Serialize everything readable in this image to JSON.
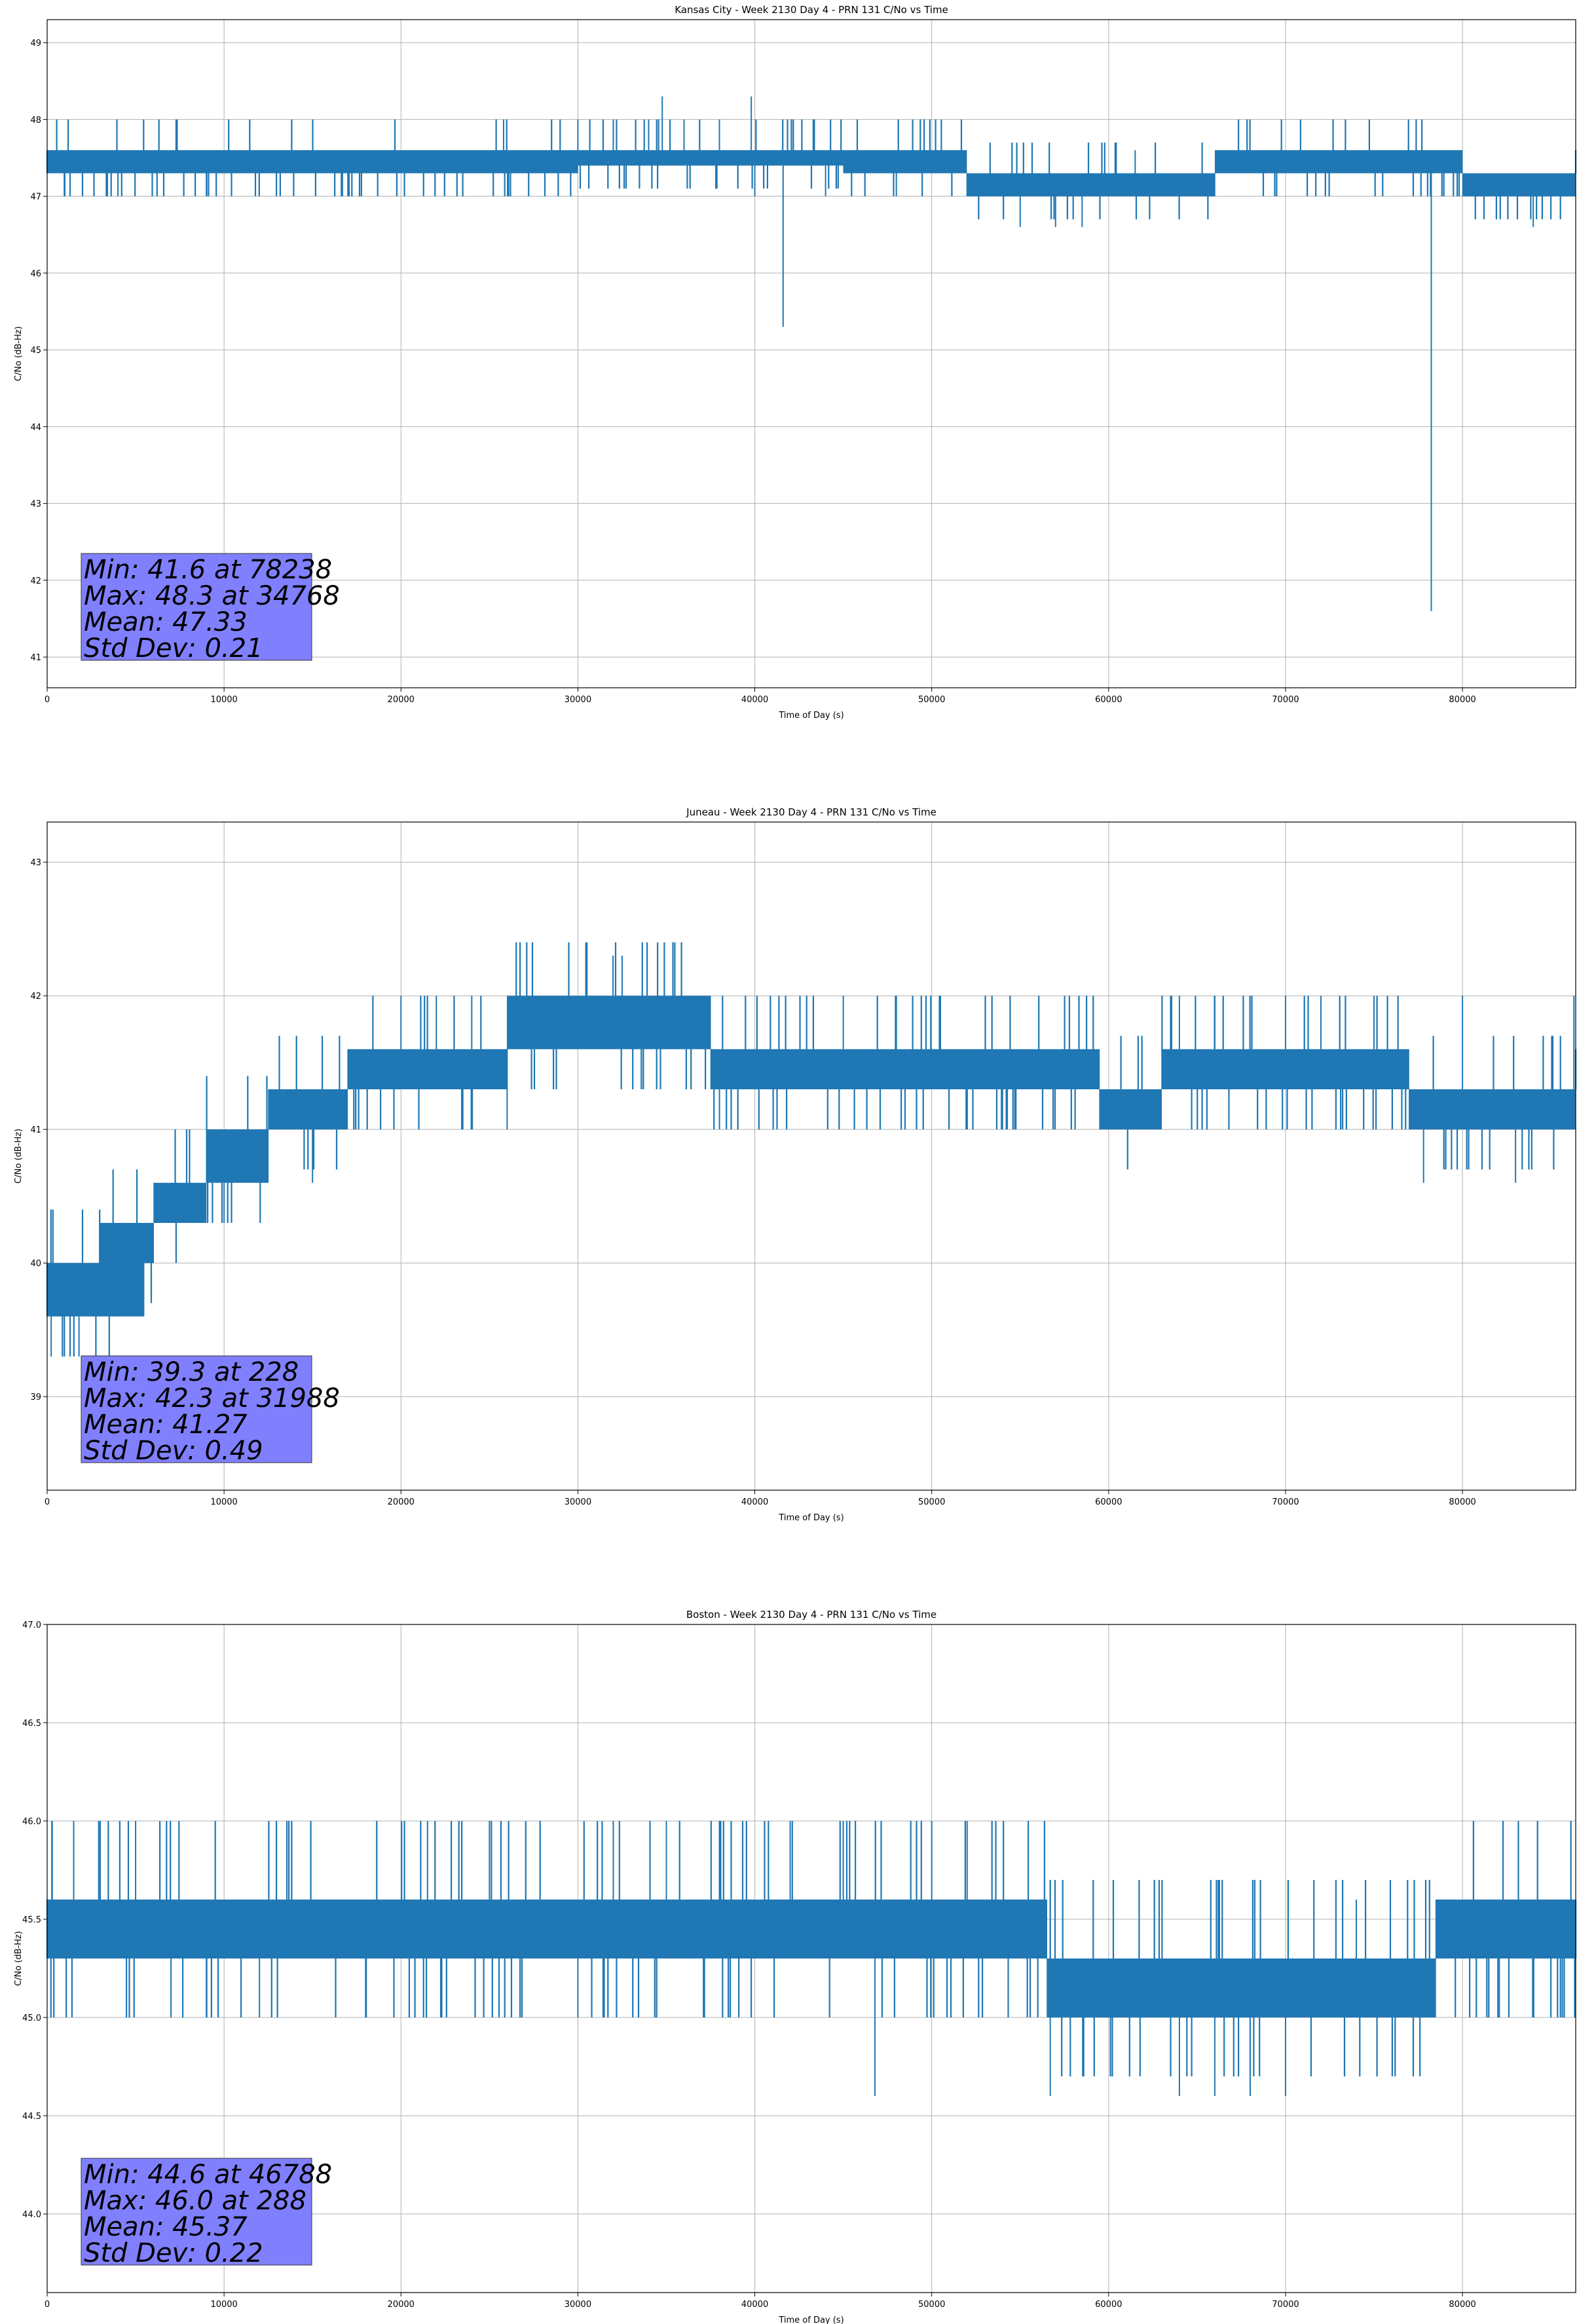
{
  "chart_data": [
    {
      "type": "line",
      "title": "Kansas City - Week 2130 Day 4 - PRN 131 C/No vs Time",
      "xlabel": "Time of Day (s)",
      "ylabel": "C/No (dB-Hz)",
      "xlim": [
        0,
        86400
      ],
      "ylim": [
        40.6,
        49.3
      ],
      "xticks": [
        0,
        10000,
        20000,
        30000,
        40000,
        50000,
        60000,
        70000,
        80000
      ],
      "yticks": [
        41,
        42,
        43,
        44,
        45,
        46,
        47,
        48,
        49
      ],
      "ytick_labels": [
        "41",
        "42",
        "43",
        "44",
        "45",
        "46",
        "47",
        "48",
        "49"
      ],
      "grid": true,
      "color": "#1f77b4",
      "band": [
        [
          0,
          47.3,
          47.6
        ],
        [
          28000,
          47.3,
          47.6
        ],
        [
          30000,
          47.4,
          47.6
        ],
        [
          39000,
          47.4,
          47.6
        ],
        [
          45000,
          47.3,
          47.6
        ],
        [
          51000,
          47.3,
          47.6
        ],
        [
          52000,
          47.0,
          47.3
        ],
        [
          64000,
          47.0,
          47.3
        ],
        [
          66000,
          47.3,
          47.6
        ],
        [
          79000,
          47.3,
          47.6
        ],
        [
          80000,
          47.0,
          47.3
        ],
        [
          86000,
          47.0,
          47.3
        ],
        [
          86400,
          47.3,
          47.6
        ]
      ],
      "spikes": [
        [
          1000,
          47.0
        ],
        [
          4000,
          47.0
        ],
        [
          9000,
          47.0
        ],
        [
          17000,
          47.0
        ],
        [
          25800,
          48.0
        ],
        [
          30000,
          48.0
        ],
        [
          32000,
          48.0
        ],
        [
          34000,
          48.0
        ],
        [
          34768,
          48.3
        ],
        [
          36000,
          48.0
        ],
        [
          38000,
          48.0
        ],
        [
          39800,
          48.3
        ],
        [
          40000,
          47.0
        ],
        [
          41600,
          45.3
        ],
        [
          44000,
          47.0
        ],
        [
          48000,
          47.0
        ],
        [
          55000,
          46.6
        ],
        [
          57000,
          46.6
        ],
        [
          58500,
          46.6
        ],
        [
          61500,
          47.6
        ],
        [
          68000,
          47.6
        ],
        [
          72000,
          47.6
        ],
        [
          74000,
          47.6
        ],
        [
          78238,
          41.6
        ],
        [
          84000,
          46.6
        ]
      ],
      "stats": [
        "Min: 41.6 at 78238",
        "Max: 48.3 at 34768",
        "Mean: 47.33",
        "Std Dev: 0.21"
      ]
    },
    {
      "type": "line",
      "title": "Juneau - Week 2130 Day 4 - PRN 131 C/No vs Time",
      "xlabel": "Time of Day (s)",
      "ylabel": "C/No (dB-Hz)",
      "xlim": [
        0,
        86400
      ],
      "ylim": [
        38.3,
        43.3
      ],
      "xticks": [
        0,
        10000,
        20000,
        30000,
        40000,
        50000,
        60000,
        70000,
        80000
      ],
      "yticks": [
        39,
        40,
        41,
        42,
        43
      ],
      "ytick_labels": [
        "39",
        "40",
        "41",
        "42",
        "43"
      ],
      "grid": true,
      "color": "#1f77b4",
      "band": [
        [
          0,
          39.6,
          40.0
        ],
        [
          2000,
          39.6,
          40.0
        ],
        [
          3000,
          39.6,
          40.3
        ],
        [
          5500,
          40.0,
          40.3
        ],
        [
          6000,
          40.3,
          40.6
        ],
        [
          8500,
          40.3,
          40.6
        ],
        [
          9000,
          40.6,
          41.0
        ],
        [
          12000,
          40.6,
          41.0
        ],
        [
          12500,
          41.0,
          41.3
        ],
        [
          16500,
          41.0,
          41.3
        ],
        [
          17000,
          41.3,
          41.6
        ],
        [
          25500,
          41.3,
          41.6
        ],
        [
          26000,
          41.6,
          42.0
        ],
        [
          37000,
          41.6,
          42.0
        ],
        [
          37500,
          41.3,
          41.6
        ],
        [
          59000,
          41.3,
          41.6
        ],
        [
          59500,
          41.0,
          41.3
        ],
        [
          62000,
          41.0,
          41.3
        ],
        [
          63000,
          41.3,
          41.6
        ],
        [
          76500,
          41.3,
          41.6
        ],
        [
          77000,
          41.0,
          41.3
        ],
        [
          85500,
          41.0,
          41.3
        ],
        [
          86400,
          41.3,
          41.6
        ]
      ],
      "spikes": [
        [
          228,
          39.3
        ],
        [
          1800,
          39.3
        ],
        [
          4000,
          39.6
        ],
        [
          7000,
          40.3
        ],
        [
          10000,
          40.3
        ],
        [
          15000,
          40.6
        ],
        [
          20000,
          42.0
        ],
        [
          22000,
          42.0
        ],
        [
          24000,
          42.0
        ],
        [
          26000,
          41.0
        ],
        [
          31988,
          42.3
        ],
        [
          32500,
          42.3
        ],
        [
          38000,
          41.0
        ],
        [
          45000,
          42.0
        ],
        [
          48000,
          42.0
        ],
        [
          54000,
          41.0
        ],
        [
          64000,
          42.0
        ],
        [
          66000,
          42.0
        ],
        [
          70000,
          42.0
        ],
        [
          72000,
          42.0
        ],
        [
          75000,
          42.0
        ],
        [
          77800,
          40.6
        ],
        [
          80000,
          42.0
        ],
        [
          83000,
          40.6
        ],
        [
          86300,
          42.0
        ]
      ],
      "stats": [
        "Min: 39.3 at 228",
        "Max: 42.3 at 31988",
        "Mean: 41.27",
        "Std Dev: 0.49"
      ]
    },
    {
      "type": "line",
      "title": "Boston - Week 2130 Day 4 - PRN 131 C/No vs Time",
      "xlabel": "Time of Day (s)",
      "ylabel": "C/No (dB-Hz)",
      "xlim": [
        0,
        86400
      ],
      "ylim": [
        43.6,
        47.0
      ],
      "xticks": [
        0,
        10000,
        20000,
        30000,
        40000,
        50000,
        60000,
        70000,
        80000
      ],
      "yticks": [
        44.0,
        44.5,
        45.0,
        45.5,
        46.0,
        46.5,
        47.0
      ],
      "ytick_labels": [
        "44.0",
        "44.5",
        "45.0",
        "45.5",
        "46.0",
        "46.5",
        "47.0"
      ],
      "grid": true,
      "color": "#1f77b4",
      "band": [
        [
          0,
          45.3,
          45.6
        ],
        [
          56000,
          45.3,
          45.6
        ],
        [
          56500,
          45.0,
          45.3
        ],
        [
          78000,
          45.0,
          45.3
        ],
        [
          78500,
          45.3,
          45.6
        ],
        [
          86400,
          45.3,
          45.6
        ]
      ],
      "spikes": [
        [
          288,
          46.0
        ],
        [
          1500,
          46.0
        ],
        [
          3000,
          46.0
        ],
        [
          5000,
          46.0
        ],
        [
          7000,
          45.0
        ],
        [
          9000,
          45.0
        ],
        [
          12000,
          45.0
        ],
        [
          18000,
          45.0
        ],
        [
          21500,
          46.0
        ],
        [
          25000,
          46.0
        ],
        [
          30000,
          45.0
        ],
        [
          32000,
          46.0
        ],
        [
          35000,
          46.0
        ],
        [
          38000,
          46.0
        ],
        [
          42000,
          46.0
        ],
        [
          45000,
          46.0
        ],
        [
          46788,
          44.6
        ],
        [
          50000,
          46.0
        ],
        [
          52000,
          46.0
        ],
        [
          56700,
          44.6
        ],
        [
          60000,
          45.0
        ],
        [
          64000,
          44.6
        ],
        [
          66000,
          44.6
        ],
        [
          68000,
          44.6
        ],
        [
          70000,
          44.6
        ],
        [
          74000,
          45.6
        ],
        [
          82000,
          45.0
        ]
      ],
      "stats": [
        "Min: 44.6 at 46788",
        "Max: 46.0 at 288",
        "Mean: 45.37",
        "Std Dev: 0.22"
      ]
    }
  ]
}
